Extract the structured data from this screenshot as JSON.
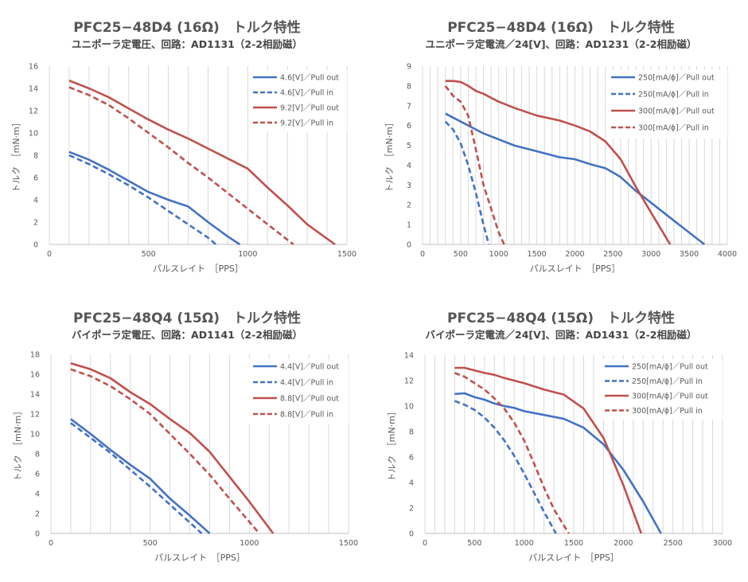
{
  "chart_data": [
    {
      "type": "line",
      "title": "PFC25−48D4 (16Ω)　トルク特性",
      "subtitle": "ユニポーラ定電圧、回路：AD1131（2-2相励磁）",
      "xlabel": "パルスレイト　［PPS］",
      "ylabel": "トルク　［mN·m］",
      "xlim": [
        0,
        1500
      ],
      "ylim": [
        0,
        16
      ],
      "xticks": [
        0,
        500,
        1000,
        1500
      ],
      "yticks": [
        0,
        2,
        4,
        6,
        8,
        10,
        12,
        14,
        16
      ],
      "grid": "vertical",
      "legend": "top-right",
      "series": [
        {
          "name": "4.6[V]／Pull out",
          "color": "#4472C4",
          "dash": false,
          "x": [
            100,
            200,
            300,
            400,
            500,
            600,
            700,
            800,
            900,
            960
          ],
          "y": [
            8.3,
            7.6,
            6.7,
            5.7,
            4.7,
            4.0,
            3.4,
            2.0,
            0.7,
            0
          ]
        },
        {
          "name": "4.6[V]／Pull in",
          "color": "#4472C4",
          "dash": true,
          "x": [
            100,
            200,
            300,
            400,
            500,
            600,
            700,
            800,
            840
          ],
          "y": [
            8.0,
            7.2,
            6.3,
            5.3,
            4.2,
            3.0,
            1.8,
            0.6,
            0
          ]
        },
        {
          "name": "9.2[V]／Pull out",
          "color": "#C0504D",
          "dash": false,
          "x": [
            100,
            200,
            300,
            400,
            500,
            600,
            700,
            800,
            900,
            1000,
            1100,
            1200,
            1300,
            1440
          ],
          "y": [
            14.7,
            14.0,
            13.2,
            12.2,
            11.2,
            10.3,
            9.5,
            8.6,
            7.7,
            6.8,
            5.1,
            3.5,
            1.8,
            0
          ]
        },
        {
          "name": "9.2[V]／Pull in",
          "color": "#C0504D",
          "dash": true,
          "x": [
            100,
            200,
            300,
            400,
            500,
            600,
            700,
            800,
            900,
            1000,
            1100,
            1230
          ],
          "y": [
            14.1,
            13.4,
            12.5,
            11.3,
            10.0,
            8.7,
            7.3,
            6.0,
            4.6,
            3.2,
            1.8,
            0
          ]
        }
      ]
    },
    {
      "type": "line",
      "title": "PFC25−48D4 (16Ω)　トルク特性",
      "subtitle": "ユニポーラ定電流／24[V]、回路：AD1231（2-2相励磁）",
      "xlabel": "パルスレイト　［PPS］",
      "ylabel": "トルク　［mN·m］",
      "xlim": [
        0,
        4000
      ],
      "ylim": [
        0,
        9
      ],
      "xticks": [
        0,
        500,
        1000,
        1500,
        2000,
        2500,
        3000,
        3500,
        4000
      ],
      "yticks": [
        0,
        1,
        2,
        3,
        4,
        5,
        6,
        7,
        8,
        9
      ],
      "grid": "vertical",
      "legend": "top-right",
      "series": [
        {
          "name": "250[mA/ϕ]／Pull out",
          "color": "#4472C4",
          "dash": false,
          "x": [
            300,
            500,
            700,
            800,
            1000,
            1200,
            1500,
            1800,
            2000,
            2200,
            2400,
            2600,
            2800,
            3000,
            3200,
            3500,
            3700
          ],
          "y": [
            6.6,
            6.2,
            5.8,
            5.6,
            5.3,
            5.0,
            4.7,
            4.4,
            4.3,
            4.05,
            3.85,
            3.4,
            2.7,
            2.1,
            1.5,
            0.6,
            0
          ]
        },
        {
          "name": "250[mA/ϕ]／Pull in",
          "color": "#4472C4",
          "dash": true,
          "x": [
            300,
            400,
            500,
            600,
            700,
            800,
            870
          ],
          "y": [
            6.2,
            5.8,
            5.1,
            4.0,
            2.6,
            1.0,
            0
          ]
        },
        {
          "name": "300[mA/ϕ]／Pull out",
          "color": "#C0504D",
          "dash": false,
          "x": [
            300,
            400,
            500,
            600,
            700,
            800,
            1000,
            1200,
            1500,
            1800,
            2000,
            2200,
            2400,
            2600,
            2800,
            3000,
            3250
          ],
          "y": [
            8.25,
            8.25,
            8.2,
            8.0,
            7.75,
            7.6,
            7.2,
            6.9,
            6.5,
            6.25,
            6.0,
            5.7,
            5.2,
            4.3,
            2.9,
            1.6,
            0
          ]
        },
        {
          "name": "300[mA/ϕ]／Pull in",
          "color": "#C0504D",
          "dash": true,
          "x": [
            300,
            400,
            500,
            600,
            700,
            800,
            900,
            1000,
            1070
          ],
          "y": [
            8.0,
            7.5,
            7.2,
            6.5,
            4.8,
            3.0,
            1.8,
            0.6,
            0
          ]
        }
      ]
    },
    {
      "type": "line",
      "title": "PFC25−48Q4 (15Ω)　トルク特性",
      "subtitle": "バイポーラ定電圧、回路：AD1141（2-2相励磁）",
      "xlabel": "パルスレイト　［PPS］",
      "ylabel": "トルク　［mN·m］",
      "xlim": [
        0,
        1500
      ],
      "ylim": [
        0,
        18
      ],
      "xticks": [
        0,
        500,
        1000,
        1500
      ],
      "yticks": [
        0,
        2,
        4,
        6,
        8,
        10,
        12,
        14,
        16,
        18
      ],
      "grid": "vertical",
      "legend": "top-right",
      "series": [
        {
          "name": "4.4[V]／Pull out",
          "color": "#4472C4",
          "dash": false,
          "x": [
            100,
            200,
            300,
            400,
            500,
            600,
            700,
            800
          ],
          "y": [
            11.5,
            10.0,
            8.4,
            6.9,
            5.5,
            3.5,
            1.8,
            0
          ]
        },
        {
          "name": "4.4[V]／Pull in",
          "color": "#4472C4",
          "dash": true,
          "x": [
            100,
            200,
            300,
            400,
            500,
            600,
            700,
            760
          ],
          "y": [
            11.1,
            9.6,
            8.1,
            6.4,
            4.7,
            2.9,
            1.1,
            0
          ]
        },
        {
          "name": "8.8[V]／Pull out",
          "color": "#C0504D",
          "dash": false,
          "x": [
            100,
            200,
            300,
            400,
            500,
            600,
            700,
            800,
            900,
            1000,
            1120
          ],
          "y": [
            17.1,
            16.5,
            15.6,
            14.2,
            13.0,
            11.5,
            10.1,
            8.2,
            5.7,
            3.2,
            0
          ]
        },
        {
          "name": "8.8[V]／Pull in",
          "color": "#C0504D",
          "dash": true,
          "x": [
            100,
            200,
            300,
            400,
            500,
            600,
            700,
            800,
            900,
            1050
          ],
          "y": [
            16.5,
            15.8,
            14.8,
            13.5,
            12.0,
            10.0,
            8.0,
            5.9,
            3.5,
            0
          ]
        }
      ]
    },
    {
      "type": "line",
      "title": "PFC25−48Q4 (15Ω)　トルク特性",
      "subtitle": "バイポーラ定電流／24[V]、回路：AD1431（2-2相励磁）",
      "xlabel": "パルスレイト　［PPS］",
      "ylabel": "トルク　［mN·m］",
      "xlim": [
        0,
        3000
      ],
      "ylim": [
        0,
        14
      ],
      "xticks": [
        0,
        500,
        1000,
        1500,
        2000,
        2500,
        3000
      ],
      "yticks": [
        0,
        2,
        4,
        6,
        8,
        10,
        12,
        14
      ],
      "grid": "vertical",
      "legend": "top-right",
      "series": [
        {
          "name": "250[mA/ϕ]／Pull out",
          "color": "#4472C4",
          "dash": false,
          "x": [
            300,
            400,
            500,
            600,
            700,
            800,
            900,
            1000,
            1200,
            1400,
            1600,
            1800,
            2000,
            2200,
            2380
          ],
          "y": [
            10.95,
            11.0,
            10.7,
            10.5,
            10.2,
            10.0,
            9.85,
            9.6,
            9.3,
            9.0,
            8.3,
            7.0,
            5.0,
            2.5,
            0
          ]
        },
        {
          "name": "250[mA/ϕ]／Pull in",
          "color": "#4472C4",
          "dash": true,
          "x": [
            300,
            400,
            500,
            600,
            700,
            800,
            900,
            1000,
            1100,
            1200,
            1320
          ],
          "y": [
            10.4,
            10.1,
            9.7,
            9.1,
            8.3,
            7.3,
            6.1,
            4.7,
            3.2,
            1.7,
            0
          ]
        },
        {
          "name": "300[mA/ϕ]／Pull out",
          "color": "#C0504D",
          "dash": false,
          "x": [
            300,
            400,
            500,
            600,
            700,
            800,
            1000,
            1200,
            1400,
            1600,
            1800,
            2000,
            2180
          ],
          "y": [
            13.0,
            13.0,
            12.8,
            12.6,
            12.45,
            12.2,
            11.8,
            11.3,
            10.9,
            9.8,
            7.5,
            3.8,
            0
          ]
        },
        {
          "name": "300[mA/ϕ]／Pull in",
          "color": "#C0504D",
          "dash": true,
          "x": [
            300,
            400,
            500,
            600,
            700,
            800,
            900,
            1000,
            1100,
            1200,
            1300,
            1450
          ],
          "y": [
            12.6,
            12.3,
            11.8,
            11.3,
            10.6,
            9.8,
            8.7,
            7.3,
            5.5,
            3.6,
            1.9,
            0
          ]
        }
      ]
    }
  ]
}
